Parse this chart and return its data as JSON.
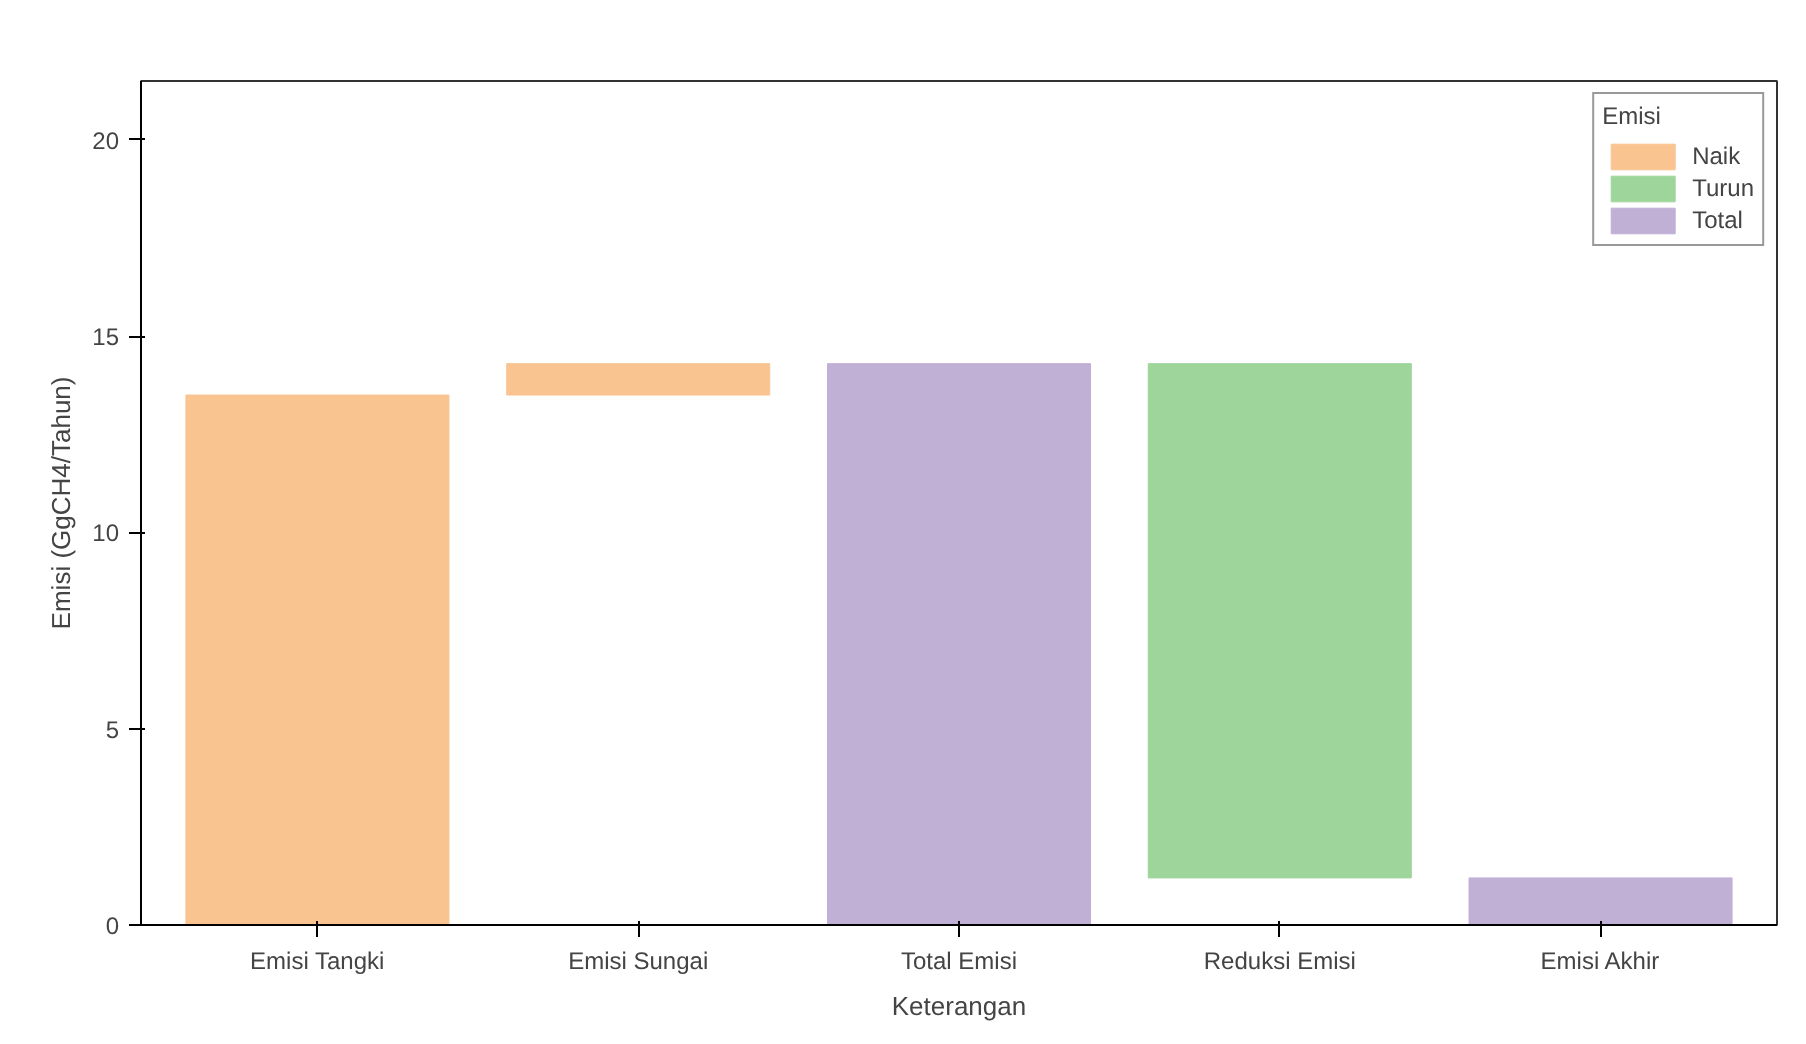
{
  "chart_data": {
    "type": "bar",
    "xlabel": "Keterangan",
    "ylabel": "Emisi (GgCH4/Tahun)",
    "legend_title": "Emisi",
    "categories": [
      "Emisi Tangki",
      "Emisi Sungai",
      "Total Emisi",
      "Reduksi Emisi",
      "Emisi Akhir"
    ],
    "series": [
      {
        "name": "Naik",
        "color": "#f9c490",
        "values": [
          13.5,
          0.8,
          null,
          null,
          null
        ],
        "base": [
          0,
          13.5,
          null,
          null,
          null
        ]
      },
      {
        "name": "Turun",
        "color": "#9ed59b",
        "values": [
          null,
          null,
          null,
          13.1,
          null
        ],
        "base": [
          null,
          null,
          null,
          1.2,
          null
        ]
      },
      {
        "name": "Total",
        "color": "#c0b0d6",
        "values": [
          null,
          null,
          14.3,
          null,
          1.2
        ],
        "base": [
          null,
          null,
          0,
          null,
          0
        ]
      }
    ],
    "ylim": [
      0,
      21.5
    ],
    "yticks": [
      0,
      5,
      10,
      15,
      20
    ],
    "grid": false,
    "legend": "top right"
  }
}
